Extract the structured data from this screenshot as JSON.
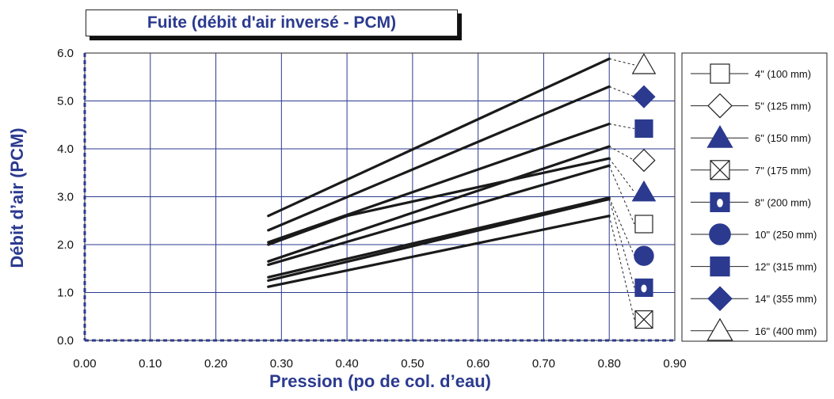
{
  "chart_data": {
    "type": "line",
    "title": "Fuite (débit d'air inversé - PCM)",
    "xlabel": "Pression (po de col. d’eau)",
    "ylabel": "Débit d’air (PCM)",
    "xlim": [
      0.0,
      0.9
    ],
    "ylim": [
      0.0,
      6.0
    ],
    "x_ticks": [
      "0.00",
      "0.10",
      "0.20",
      "0.30",
      "0.40",
      "0.50",
      "0.60",
      "0.70",
      "0.80",
      "0.90"
    ],
    "y_ticks": [
      "0.0",
      "1.0",
      "2.0",
      "3.0",
      "4.0",
      "5.0",
      "6.0"
    ],
    "grid": true,
    "legend_position": "right",
    "colors": {
      "accent": "#2b3a8f",
      "line": "#1a1a1a"
    },
    "series": [
      {
        "name": "4\" (100 mm)",
        "marker": "square-open",
        "x": [
          0.28,
          0.8
        ],
        "y": [
          1.58,
          3.65
        ]
      },
      {
        "name": "5\" (125 mm)",
        "marker": "diamond-open",
        "x": [
          0.28,
          0.8
        ],
        "y": [
          1.65,
          4.05
        ]
      },
      {
        "name": "6\" (150 mm)",
        "marker": "triangle-filled",
        "x": [
          0.28,
          0.4,
          0.8
        ],
        "y": [
          2.0,
          2.6,
          3.8
        ]
      },
      {
        "name": "7\" (175 mm)",
        "marker": "square-x",
        "x": [
          0.28,
          0.8
        ],
        "y": [
          1.12,
          2.6
        ]
      },
      {
        "name": "8\" (200 mm)",
        "marker": "square-dot",
        "x": [
          0.28,
          0.8
        ],
        "y": [
          1.25,
          2.95
        ]
      },
      {
        "name": "10\" (250 mm)",
        "marker": "circle-filled",
        "x": [
          0.28,
          0.8
        ],
        "y": [
          1.32,
          2.98
        ]
      },
      {
        "name": "12\" (315 mm)",
        "marker": "square-filled",
        "x": [
          0.28,
          0.8
        ],
        "y": [
          2.05,
          4.52
        ]
      },
      {
        "name": "14\" (355 mm)",
        "marker": "diamond-filled",
        "x": [
          0.28,
          0.8
        ],
        "y": [
          2.3,
          5.3
        ]
      },
      {
        "name": "16\" (400 mm)",
        "marker": "triangle-open",
        "x": [
          0.28,
          0.8
        ],
        "y": [
          2.6,
          5.88
        ]
      }
    ]
  }
}
